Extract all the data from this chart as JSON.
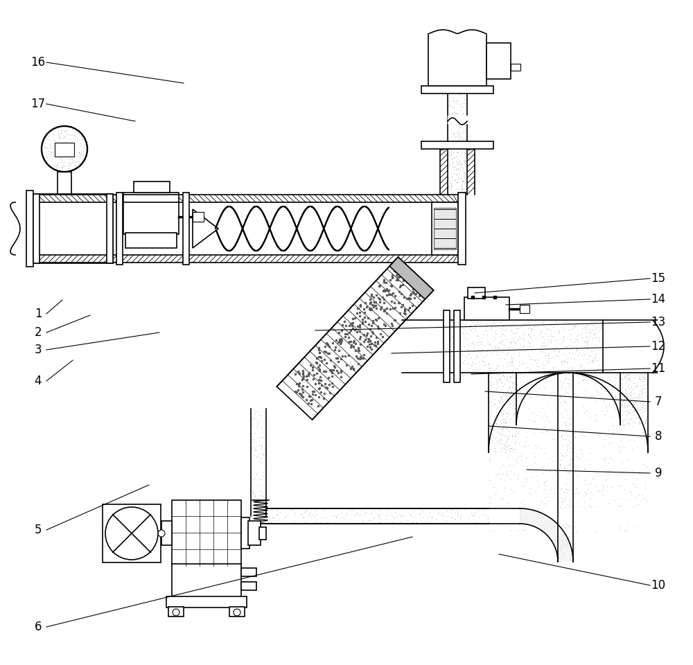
{
  "bg": "#ffffff",
  "lc": "#000000",
  "lw": 1.2,
  "figsize": [
    10.0,
    9.6
  ],
  "dpi": 100,
  "labels": [
    [
      "1",
      55,
      507,
      90,
      527
    ],
    [
      "2",
      55,
      480,
      130,
      505
    ],
    [
      "3",
      55,
      455,
      230,
      480
    ],
    [
      "4",
      55,
      410,
      105,
      440
    ],
    [
      "5",
      55,
      195,
      215,
      260
    ],
    [
      "6",
      55,
      55,
      595,
      185
    ],
    [
      "7",
      950,
      380,
      700,
      395
    ],
    [
      "8",
      950,
      330,
      705,
      345
    ],
    [
      "9",
      950,
      277,
      760,
      282
    ],
    [
      "10",
      950,
      115,
      720,
      160
    ],
    [
      "11",
      950,
      428,
      680,
      420
    ],
    [
      "12",
      950,
      460,
      565,
      450
    ],
    [
      "13",
      950,
      495,
      455,
      483
    ],
    [
      "14",
      950,
      528,
      730,
      520
    ],
    [
      "15",
      950,
      558,
      685,
      537
    ],
    [
      "16",
      55,
      870,
      265,
      840
    ],
    [
      "17",
      55,
      810,
      195,
      785
    ]
  ]
}
